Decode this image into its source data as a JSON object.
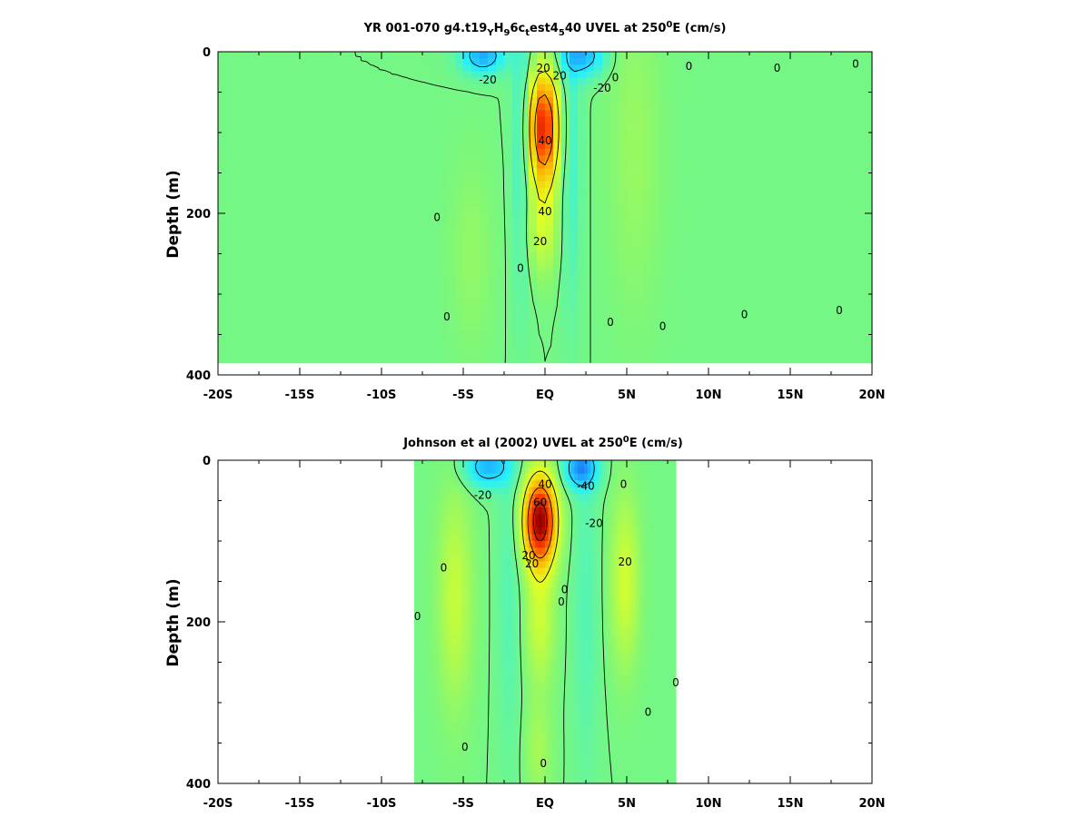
{
  "chart_data": [
    {
      "type": "heatmap",
      "title_parts": [
        "YR 001-070 g4.t19",
        "Y",
        "H",
        "9",
        "6c",
        "t",
        "est4",
        "5",
        "40 UVEL at 250",
        "0",
        "E (cm/s)"
      ],
      "xlabel": "",
      "ylabel": "Depth (m)",
      "x_ticks": [
        "-20S",
        "-15S",
        "-10S",
        "-5S",
        "EQ",
        "5N",
        "10N",
        "15N",
        "20N"
      ],
      "y_ticks": [
        "0",
        "200",
        "400"
      ],
      "xlim": [
        -20,
        20
      ],
      "ylim": [
        400,
        0
      ],
      "data_extent": {
        "lat": [
          -20,
          20
        ],
        "depth": [
          0,
          385
        ]
      },
      "contour_labels": [
        "20",
        "-20",
        "40",
        "40",
        "20",
        "-20",
        "20",
        "0",
        "0",
        "0",
        "0",
        "0",
        "0",
        "0",
        "0",
        "0",
        "0",
        "0"
      ],
      "features": [
        {
          "kind": "jet",
          "lat": -0.1,
          "depth": 95,
          "value": 58,
          "sx": 0.95,
          "sy": 70
        },
        {
          "kind": "jet",
          "lat": -0.2,
          "depth": 220,
          "value": 14,
          "sx": 1.0,
          "sy": 60
        },
        {
          "kind": "jet",
          "lat": -3.8,
          "depth": 5,
          "value": -30,
          "sx": 1.3,
          "sy": 22
        },
        {
          "kind": "jet",
          "lat": 2.3,
          "depth": 5,
          "value": -28,
          "sx": 1.3,
          "sy": 25
        },
        {
          "kind": "jet",
          "lat": -1.4,
          "depth": 100,
          "value": -12,
          "sx": 0.6,
          "sy": 200
        },
        {
          "kind": "jet",
          "lat": 1.6,
          "depth": 120,
          "value": -10,
          "sx": 0.6,
          "sy": 200
        },
        {
          "kind": "jet",
          "lat": 5.5,
          "depth": 120,
          "value": 6,
          "sx": 1.6,
          "sy": 200
        },
        {
          "kind": "jet",
          "lat": -4.5,
          "depth": 250,
          "value": 5,
          "sx": 1.3,
          "sy": 120
        }
      ]
    },
    {
      "type": "heatmap",
      "title_parts": [
        "Johnson et al (2002) UVEL at 250",
        "0",
        "E (cm/s)"
      ],
      "xlabel": "",
      "ylabel": "Depth (m)",
      "x_ticks": [
        "-20S",
        "-15S",
        "-10S",
        "-5S",
        "EQ",
        "5N",
        "10N",
        "15N",
        "20N"
      ],
      "y_ticks": [
        "0",
        "200",
        "400"
      ],
      "xlim": [
        -20,
        20
      ],
      "ylim": [
        400,
        0
      ],
      "data_extent": {
        "lat": [
          -8,
          8
        ],
        "depth": [
          0,
          400
        ]
      },
      "contour_labels": [
        "-20",
        "40",
        "-40",
        "60",
        "20",
        "20",
        "-20",
        "20",
        "0",
        "0",
        "0",
        "0",
        "0",
        "0",
        "0",
        "0",
        "0"
      ],
      "features": [
        {
          "kind": "jet",
          "lat": -0.3,
          "depth": 75,
          "value": 70,
          "sx": 1.0,
          "sy": 55
        },
        {
          "kind": "jet",
          "lat": -0.3,
          "depth": 200,
          "value": 14,
          "sx": 0.9,
          "sy": 80
        },
        {
          "kind": "jet",
          "lat": -3.5,
          "depth": 8,
          "value": -28,
          "sx": 1.4,
          "sy": 25
        },
        {
          "kind": "jet",
          "lat": 2.2,
          "depth": 10,
          "value": -35,
          "sx": 1.0,
          "sy": 25
        },
        {
          "kind": "jet",
          "lat": -2.2,
          "depth": 160,
          "value": -6,
          "sx": 0.7,
          "sy": 220
        },
        {
          "kind": "jet",
          "lat": 2.5,
          "depth": 180,
          "value": -6,
          "sx": 0.8,
          "sy": 220
        },
        {
          "kind": "jet",
          "lat": -5.5,
          "depth": 170,
          "value": 13,
          "sx": 1.1,
          "sy": 140
        },
        {
          "kind": "jet",
          "lat": 4.9,
          "depth": 150,
          "value": 15,
          "sx": 0.9,
          "sy": 110
        },
        {
          "kind": "jet",
          "lat": -0.4,
          "depth": 360,
          "value": 8,
          "sx": 0.8,
          "sy": 60
        }
      ]
    }
  ],
  "colorscale": {
    "vmin": -50,
    "vmax": 70,
    "stops": [
      "#0a2fd8",
      "#1ea0ff",
      "#23f1ff",
      "#7cf77a",
      "#e6ff1e",
      "#ffb000",
      "#ff3a00",
      "#980000"
    ]
  }
}
